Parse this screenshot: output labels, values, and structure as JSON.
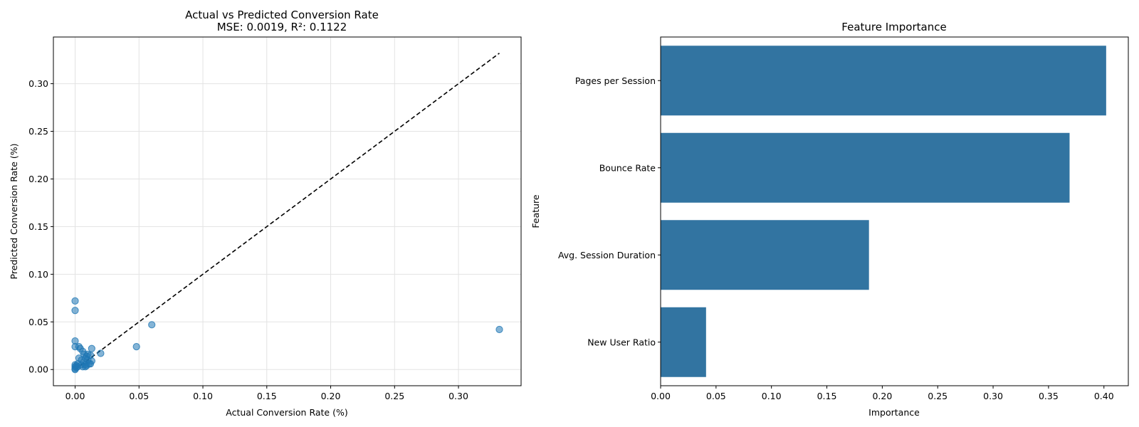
{
  "chart_data": [
    {
      "type": "scatter",
      "title": "Actual vs Predicted Conversion Rate",
      "subtitle": "MSE: 0.0019, R²: 0.1122",
      "xlabel": "Actual Conversion Rate (%)",
      "ylabel": "Predicted Conversion Rate (%)",
      "xlim": [
        -0.017,
        0.349
      ],
      "ylim": [
        -0.017,
        0.349
      ],
      "xticks": [
        0.0,
        0.05,
        0.1,
        0.15,
        0.2,
        0.25,
        0.3
      ],
      "yticks": [
        0.0,
        0.05,
        0.1,
        0.15,
        0.2,
        0.25,
        0.3
      ],
      "xtick_labels": [
        "0.00",
        "0.05",
        "0.10",
        "0.15",
        "0.20",
        "0.25",
        "0.30"
      ],
      "ytick_labels": [
        "0.00",
        "0.05",
        "0.10",
        "0.15",
        "0.20",
        "0.25",
        "0.30"
      ],
      "grid": true,
      "point_color": "#1f77b4",
      "reference_line": {
        "x": [
          0,
          0.332
        ],
        "y": [
          0,
          0.332
        ],
        "style": "dashed",
        "color": "#000000"
      },
      "points": [
        {
          "x": 0.0,
          "y": 0.072
        },
        {
          "x": 0.0,
          "y": 0.062
        },
        {
          "x": 0.0,
          "y": 0.03
        },
        {
          "x": 0.0,
          "y": 0.024
        },
        {
          "x": 0.0,
          "y": 0.005
        },
        {
          "x": 0.0,
          "y": 0.003
        },
        {
          "x": 0.0,
          "y": 0.001
        },
        {
          "x": 0.0,
          "y": 0.0
        },
        {
          "x": 0.001,
          "y": 0.002
        },
        {
          "x": 0.001,
          "y": 0.004
        },
        {
          "x": 0.002,
          "y": 0.006
        },
        {
          "x": 0.002,
          "y": 0.003
        },
        {
          "x": 0.003,
          "y": 0.024
        },
        {
          "x": 0.004,
          "y": 0.022
        },
        {
          "x": 0.003,
          "y": 0.012
        },
        {
          "x": 0.005,
          "y": 0.01
        },
        {
          "x": 0.005,
          "y": 0.005
        },
        {
          "x": 0.006,
          "y": 0.003
        },
        {
          "x": 0.006,
          "y": 0.019
        },
        {
          "x": 0.007,
          "y": 0.016
        },
        {
          "x": 0.007,
          "y": 0.008
        },
        {
          "x": 0.008,
          "y": 0.005
        },
        {
          "x": 0.008,
          "y": 0.003
        },
        {
          "x": 0.008,
          "y": 0.012
        },
        {
          "x": 0.009,
          "y": 0.014
        },
        {
          "x": 0.009,
          "y": 0.004
        },
        {
          "x": 0.01,
          "y": 0.016
        },
        {
          "x": 0.01,
          "y": 0.01
        },
        {
          "x": 0.011,
          "y": 0.006
        },
        {
          "x": 0.012,
          "y": 0.015
        },
        {
          "x": 0.012,
          "y": 0.006
        },
        {
          "x": 0.013,
          "y": 0.022
        },
        {
          "x": 0.013,
          "y": 0.009
        },
        {
          "x": 0.02,
          "y": 0.017
        },
        {
          "x": 0.048,
          "y": 0.024
        },
        {
          "x": 0.06,
          "y": 0.047
        },
        {
          "x": 0.332,
          "y": 0.042
        }
      ]
    },
    {
      "type": "bar",
      "orientation": "horizontal",
      "title": "Feature Importance",
      "xlabel": "Importance",
      "ylabel": "Feature",
      "categories": [
        "Pages per Session",
        "Bounce Rate",
        "Avg. Session Duration",
        "New User Ratio"
      ],
      "values": [
        0.402,
        0.369,
        0.188,
        0.041
      ],
      "xlim": [
        0,
        0.422
      ],
      "xticks": [
        0.0,
        0.05,
        0.1,
        0.15,
        0.2,
        0.25,
        0.3,
        0.35,
        0.4
      ],
      "xtick_labels": [
        "0.00",
        "0.05",
        "0.10",
        "0.15",
        "0.20",
        "0.25",
        "0.30",
        "0.35",
        "0.40"
      ],
      "bar_color": "#3274a1",
      "grid": false
    }
  ]
}
